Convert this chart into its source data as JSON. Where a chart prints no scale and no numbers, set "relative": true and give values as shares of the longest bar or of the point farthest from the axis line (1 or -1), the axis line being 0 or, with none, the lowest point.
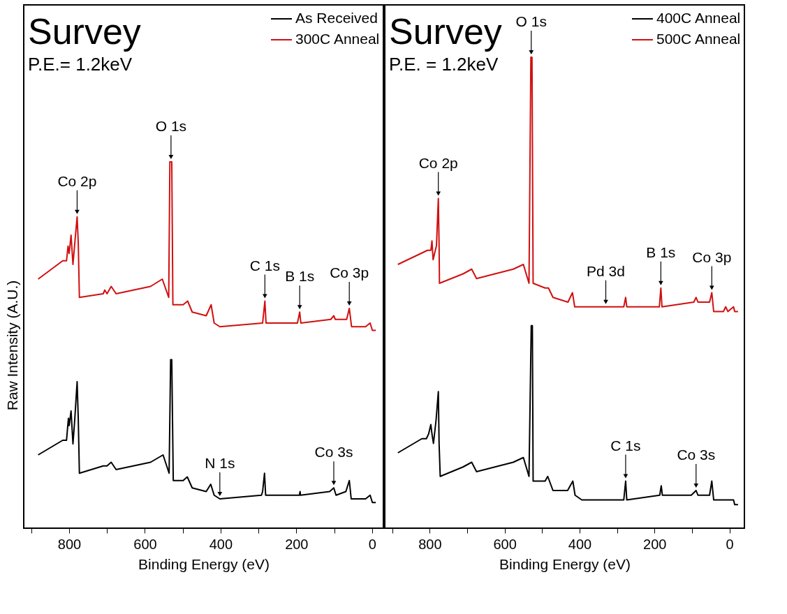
{
  "chart_data": [
    {
      "type": "line",
      "title": "Survey",
      "subtitle": "P.E.= 1.2keV",
      "xlabel": "Binding Energy (eV)",
      "ylabel": "Raw Intensity (A.U.)",
      "relative": true,
      "tick_labels": "x",
      "legend": "top right",
      "grid": false,
      "xlim": [
        920,
        -30
      ],
      "xticks": [
        {
          "value": 900,
          "label": null
        },
        800,
        {
          "value": 700,
          "label": null
        },
        600,
        {
          "value": 500,
          "label": null
        },
        400,
        {
          "value": 300,
          "label": null
        },
        200,
        {
          "value": 100,
          "label": null
        },
        0
      ],
      "series": [
        {
          "name": "As Received",
          "color": "#000000",
          "x": [
            882,
            817,
            807,
            802,
            800,
            795,
            790,
            785,
            779,
            776,
            773,
            710,
            706,
            700,
            689,
            676,
            585,
            552,
            536,
            532,
            529,
            525,
            499,
            488,
            475,
            438,
            426,
            417,
            402,
            292,
            289,
            284,
            281,
            192,
            190,
            189,
            112,
            101,
            95,
            69,
            60,
            55,
            26,
            22,
            17,
            5,
            -1,
            -10
          ],
          "values": [
            0.2,
            0.24,
            0.24,
            0.3,
            0.28,
            0.32,
            0.23,
            0.3,
            0.4,
            0.3,
            0.15,
            0.17,
            0.17,
            0.17,
            0.18,
            0.16,
            0.18,
            0.2,
            0.15,
            0.46,
            0.46,
            0.13,
            0.13,
            0.14,
            0.11,
            0.1,
            0.12,
            0.09,
            0.08,
            0.09,
            0.1,
            0.15,
            0.09,
            0.09,
            0.1,
            0.09,
            0.1,
            0.11,
            0.09,
            0.1,
            0.13,
            0.08,
            0.08,
            0.08,
            0.08,
            0.09,
            0.07,
            0.07
          ]
        },
        {
          "name": "300C Anneal",
          "color": "#d10f0f",
          "x": [
            882,
            817,
            807,
            803,
            800,
            795,
            790,
            785,
            779,
            776,
            773,
            710,
            706,
            700,
            689,
            676,
            585,
            554,
            537,
            534,
            529,
            526,
            499,
            487,
            475,
            438,
            425,
            417,
            402,
            289,
            283,
            280,
            197,
            191,
            188,
            109,
            101,
            97,
            67,
            60,
            54,
            28,
            22,
            17,
            5,
            -1,
            -10
          ],
          "values": [
            0.68,
            0.73,
            0.73,
            0.77,
            0.75,
            0.8,
            0.72,
            0.78,
            0.85,
            0.78,
            0.63,
            0.64,
            0.65,
            0.64,
            0.66,
            0.64,
            0.66,
            0.68,
            0.63,
            1,
            1,
            0.61,
            0.61,
            0.62,
            0.59,
            0.58,
            0.61,
            0.56,
            0.55,
            0.56,
            0.62,
            0.56,
            0.56,
            0.59,
            0.56,
            0.57,
            0.58,
            0.57,
            0.57,
            0.6,
            0.55,
            0.55,
            0.55,
            0.55,
            0.56,
            0.54,
            0.54
          ]
        }
      ],
      "annotations": [
        {
          "text": "Co 2p",
          "x": 779,
          "y": 0.85
        },
        {
          "text": "O 1s",
          "x": 531,
          "y": 1
        },
        {
          "text": "C 1s",
          "x": 283,
          "y": 0.62
        },
        {
          "text": "B 1s",
          "x": 191,
          "y": 0.59
        },
        {
          "text": "Co 3p",
          "x": 60,
          "y": 0.6
        },
        {
          "text": "N 1s",
          "x": 402,
          "y": 0.08
        },
        {
          "text": "Co 3s",
          "x": 101,
          "y": 0.11
        }
      ]
    },
    {
      "type": "line",
      "title": "Survey",
      "subtitle": "P.E. = 1.2keV",
      "xlabel": "Binding Energy (eV)",
      "relative": true,
      "tick_labels": "x",
      "legend": "top right",
      "grid": false,
      "xlim": [
        920,
        -40
      ],
      "xticks": [
        {
          "value": 900,
          "label": null
        },
        800,
        {
          "value": 700,
          "label": null
        },
        600,
        {
          "value": 500,
          "label": null
        },
        400,
        {
          "value": 300,
          "label": null
        },
        200,
        {
          "value": 100,
          "label": null
        },
        0
      ],
      "series": [
        {
          "name": "400C Anneal",
          "color": "#000000",
          "x": [
            885,
            821,
            809,
            803,
            797,
            794,
            790,
            783,
            777,
            775,
            772,
            711,
            688,
            675,
            577,
            550,
            535,
            529,
            526,
            524,
            492,
            485,
            471,
            432,
            418,
            412,
            394,
            282,
            277,
            274,
            186,
            182,
            179,
            102,
            89,
            84,
            53,
            47,
            42,
            16,
            10,
            4,
            -11,
            -14,
            -23
          ],
          "values": [
            0.16,
            0.19,
            0.19,
            0.2,
            0.22,
            0.2,
            0.18,
            0.23,
            0.29,
            0.18,
            0.11,
            0.13,
            0.14,
            0.12,
            0.14,
            0.15,
            0.11,
            0.43,
            0.43,
            0.1,
            0.1,
            0.11,
            0.08,
            0.08,
            0.1,
            0.07,
            0.06,
            0.06,
            0.1,
            0.06,
            0.07,
            0.09,
            0.07,
            0.07,
            0.08,
            0.07,
            0.07,
            0.1,
            0.06,
            0.06,
            0.06,
            0.06,
            0.06,
            0.05,
            0.05
          ]
        },
        {
          "name": "500C Anneal",
          "color": "#d10f0f",
          "x": [
            885,
            806,
            797,
            794,
            791,
            782,
            777,
            775,
            774,
            711,
            688,
            675,
            577,
            550,
            535,
            530,
            527,
            524,
            492,
            483,
            471,
            431,
            419,
            413,
            397,
            330,
            282,
            277,
            274,
            187,
            183,
            180,
            95,
            89,
            84,
            53,
            47,
            42,
            16,
            10,
            4,
            -11,
            -14,
            -23
          ],
          "values": [
            0.56,
            0.59,
            0.59,
            0.61,
            0.57,
            0.6,
            0.7,
            0.6,
            0.52,
            0.54,
            0.55,
            0.53,
            0.55,
            0.56,
            0.52,
            1,
            1,
            0.52,
            0.51,
            0.51,
            0.49,
            0.48,
            0.5,
            0.47,
            0.47,
            0.47,
            0.47,
            0.49,
            0.47,
            0.47,
            0.51,
            0.47,
            0.48,
            0.49,
            0.48,
            0.48,
            0.5,
            0.46,
            0.46,
            0.47,
            0.46,
            0.47,
            0.46,
            0.46
          ]
        }
      ],
      "annotations": [
        {
          "text": "Co 2p",
          "x": 777,
          "y": 0.7
        },
        {
          "text": "O 1s",
          "x": 529,
          "y": 1
        },
        {
          "text": "B 1s",
          "x": 183,
          "y": 0.51
        },
        {
          "text": "Co 3p",
          "x": 47,
          "y": 0.5
        },
        {
          "text": "Pd 3d",
          "x": 330,
          "y": 0.47
        },
        {
          "text": "C 1s",
          "x": 277,
          "y": 0.1
        },
        {
          "text": "Co 3s",
          "x": 89,
          "y": 0.08
        }
      ]
    }
  ]
}
